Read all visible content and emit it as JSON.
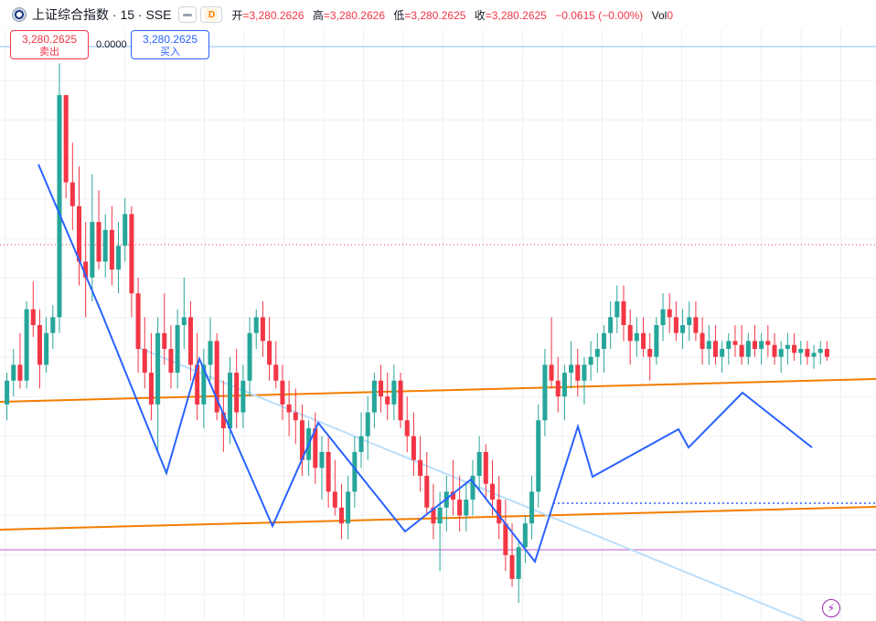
{
  "header": {
    "symbol": "上证综合指数 · 15 · SSE",
    "badge_letter": "D",
    "open_label": "开",
    "open_value": "=3,280.2626",
    "high_label": "高",
    "high_value": "=3,280.2626",
    "low_label": "低",
    "low_value": "=3,280.2625",
    "close_label": "收",
    "close_value": "=3,280.2625",
    "change": "−0.0615 (−0.00%)",
    "vol_label": "Vol",
    "vol_value": "0"
  },
  "trade": {
    "sell_price": "3,280.2625",
    "sell_label": "卖出",
    "spread": "0.0000",
    "buy_price": "3,280.2625",
    "buy_label": "买入"
  },
  "colors": {
    "up": "#26a69a",
    "down": "#f23645",
    "wave": "#2962ff",
    "trend_light": "#bbdefb",
    "channel": "#f57c00",
    "support": "#ce93d8",
    "top_line": "#b3d4f5",
    "grid": "#eef0f3",
    "icon": "#9c27b0"
  },
  "chart_data": {
    "type": "candlestick",
    "title": "上证综合指数",
    "interval": "15",
    "exchange": "SSE",
    "last_price": 3280.2625,
    "grid": true,
    "y_range": [
      3190,
      3330
    ],
    "candles": [
      [
        3240,
        3248,
        3236,
        3246
      ],
      [
        3246,
        3254,
        3242,
        3250
      ],
      [
        3250,
        3258,
        3244,
        3246
      ],
      [
        3246,
        3266,
        3244,
        3264
      ],
      [
        3264,
        3271,
        3257,
        3260
      ],
      [
        3260,
        3264,
        3244,
        3250
      ],
      [
        3250,
        3262,
        3248,
        3258
      ],
      [
        3258,
        3265,
        3254,
        3262
      ],
      [
        3262,
        3326,
        3258,
        3318
      ],
      [
        3318,
        3318,
        3292,
        3296
      ],
      [
        3296,
        3306,
        3284,
        3290
      ],
      [
        3290,
        3300,
        3270,
        3276
      ],
      [
        3276,
        3286,
        3262,
        3272
      ],
      [
        3272,
        3298,
        3266,
        3286
      ],
      [
        3286,
        3294,
        3274,
        3276
      ],
      [
        3276,
        3288,
        3272,
        3284
      ],
      [
        3284,
        3290,
        3270,
        3274
      ],
      [
        3274,
        3286,
        3268,
        3280
      ],
      [
        3280,
        3292,
        3276,
        3288
      ],
      [
        3288,
        3290,
        3262,
        3268
      ],
      [
        3268,
        3272,
        3248,
        3254
      ],
      [
        3254,
        3262,
        3244,
        3248
      ],
      [
        3248,
        3258,
        3236,
        3240
      ],
      [
        3240,
        3262,
        3228,
        3258
      ],
      [
        3258,
        3268,
        3250,
        3254
      ],
      [
        3254,
        3260,
        3244,
        3248
      ],
      [
        3248,
        3264,
        3244,
        3260
      ],
      [
        3260,
        3272,
        3254,
        3262
      ],
      [
        3262,
        3266,
        3246,
        3250
      ],
      [
        3250,
        3258,
        3236,
        3240
      ],
      [
        3240,
        3254,
        3234,
        3250
      ],
      [
        3250,
        3262,
        3246,
        3256
      ],
      [
        3256,
        3258,
        3236,
        3238
      ],
      [
        3238,
        3246,
        3228,
        3234
      ],
      [
        3234,
        3252,
        3230,
        3248
      ],
      [
        3248,
        3254,
        3234,
        3238
      ],
      [
        3238,
        3250,
        3234,
        3246
      ],
      [
        3246,
        3262,
        3242,
        3258
      ],
      [
        3258,
        3264,
        3254,
        3262
      ],
      [
        3262,
        3266,
        3252,
        3256
      ],
      [
        3256,
        3262,
        3246,
        3250
      ],
      [
        3250,
        3256,
        3244,
        3246
      ],
      [
        3246,
        3250,
        3236,
        3240
      ],
      [
        3240,
        3246,
        3232,
        3238
      ],
      [
        3238,
        3244,
        3230,
        3236
      ],
      [
        3236,
        3240,
        3222,
        3226
      ],
      [
        3226,
        3236,
        3222,
        3234
      ],
      [
        3234,
        3238,
        3220,
        3224
      ],
      [
        3224,
        3232,
        3216,
        3228
      ],
      [
        3228,
        3232,
        3214,
        3218
      ],
      [
        3218,
        3226,
        3212,
        3214
      ],
      [
        3214,
        3220,
        3206,
        3210
      ],
      [
        3210,
        3222,
        3206,
        3218
      ],
      [
        3218,
        3232,
        3214,
        3228
      ],
      [
        3228,
        3238,
        3224,
        3232
      ],
      [
        3232,
        3242,
        3226,
        3238
      ],
      [
        3238,
        3248,
        3234,
        3246
      ],
      [
        3246,
        3250,
        3238,
        3242
      ],
      [
        3242,
        3248,
        3236,
        3240
      ],
      [
        3240,
        3250,
        3236,
        3246
      ],
      [
        3246,
        3248,
        3234,
        3236
      ],
      [
        3236,
        3242,
        3228,
        3232
      ],
      [
        3232,
        3238,
        3222,
        3226
      ],
      [
        3226,
        3232,
        3218,
        3222
      ],
      [
        3222,
        3228,
        3212,
        3214
      ],
      [
        3214,
        3220,
        3206,
        3210
      ],
      [
        3210,
        3218,
        3198,
        3214
      ],
      [
        3214,
        3222,
        3208,
        3218
      ],
      [
        3218,
        3226,
        3212,
        3216
      ],
      [
        3216,
        3222,
        3208,
        3212
      ],
      [
        3212,
        3220,
        3208,
        3216
      ],
      [
        3216,
        3226,
        3212,
        3222
      ],
      [
        3222,
        3232,
        3218,
        3228
      ],
      [
        3228,
        3230,
        3216,
        3220
      ],
      [
        3220,
        3226,
        3212,
        3216
      ],
      [
        3216,
        3222,
        3206,
        3210
      ],
      [
        3210,
        3216,
        3198,
        3202
      ],
      [
        3202,
        3210,
        3194,
        3196
      ],
      [
        3196,
        3206,
        3190,
        3204
      ],
      [
        3204,
        3212,
        3200,
        3210
      ],
      [
        3210,
        3222,
        3206,
        3218
      ],
      [
        3218,
        3240,
        3214,
        3236
      ],
      [
        3236,
        3254,
        3232,
        3250
      ],
      [
        3250,
        3262,
        3244,
        3246
      ],
      [
        3246,
        3252,
        3238,
        3242
      ],
      [
        3242,
        3250,
        3236,
        3248
      ],
      [
        3248,
        3256,
        3244,
        3250
      ],
      [
        3250,
        3254,
        3242,
        3246
      ],
      [
        3246,
        3252,
        3240,
        3250
      ],
      [
        3250,
        3256,
        3246,
        3252
      ],
      [
        3252,
        3258,
        3248,
        3254
      ],
      [
        3254,
        3260,
        3248,
        3258
      ],
      [
        3258,
        3266,
        3254,
        3262
      ],
      [
        3262,
        3270,
        3258,
        3266
      ],
      [
        3266,
        3270,
        3256,
        3260
      ],
      [
        3260,
        3264,
        3250,
        3256
      ],
      [
        3256,
        3262,
        3252,
        3258
      ],
      [
        3258,
        3262,
        3252,
        3254
      ],
      [
        3254,
        3258,
        3246,
        3252
      ],
      [
        3252,
        3262,
        3250,
        3260
      ],
      [
        3260,
        3268,
        3256,
        3264
      ],
      [
        3264,
        3268,
        3258,
        3262
      ],
      [
        3262,
        3266,
        3256,
        3258
      ],
      [
        3258,
        3264,
        3254,
        3260
      ],
      [
        3260,
        3266,
        3256,
        3262
      ],
      [
        3262,
        3266,
        3256,
        3258
      ],
      [
        3258,
        3262,
        3250,
        3254
      ],
      [
        3254,
        3260,
        3250,
        3256
      ],
      [
        3256,
        3260,
        3250,
        3252
      ],
      [
        3252,
        3256,
        3248,
        3254
      ],
      [
        3254,
        3258,
        3250,
        3256
      ],
      [
        3256,
        3260,
        3252,
        3255
      ],
      [
        3255,
        3260,
        3250,
        3252
      ],
      [
        3252,
        3258,
        3250,
        3256
      ],
      [
        3256,
        3260,
        3252,
        3254
      ],
      [
        3254,
        3258,
        3250,
        3256
      ],
      [
        3256,
        3260,
        3252,
        3255
      ],
      [
        3255,
        3258,
        3250,
        3252
      ],
      [
        3252,
        3256,
        3248,
        3254
      ],
      [
        3254,
        3258,
        3250,
        3255
      ],
      [
        3255,
        3258,
        3251,
        3253
      ],
      [
        3253,
        3256,
        3250,
        3254
      ],
      [
        3254,
        3256,
        3250,
        3252
      ],
      [
        3252,
        3255,
        3249,
        3253
      ],
      [
        3253,
        3256,
        3250,
        3254
      ],
      [
        3254,
        3256,
        3251,
        3252
      ]
    ]
  }
}
